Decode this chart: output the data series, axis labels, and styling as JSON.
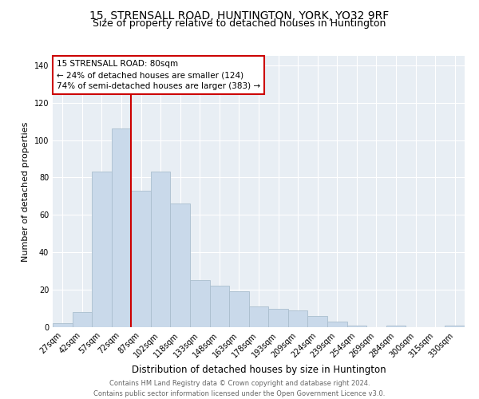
{
  "title": "15, STRENSALL ROAD, HUNTINGTON, YORK, YO32 9RF",
  "subtitle": "Size of property relative to detached houses in Huntington",
  "xlabel": "Distribution of detached houses by size in Huntington",
  "ylabel": "Number of detached properties",
  "bar_labels": [
    "27sqm",
    "42sqm",
    "57sqm",
    "72sqm",
    "87sqm",
    "102sqm",
    "118sqm",
    "133sqm",
    "148sqm",
    "163sqm",
    "178sqm",
    "193sqm",
    "209sqm",
    "224sqm",
    "239sqm",
    "254sqm",
    "269sqm",
    "284sqm",
    "300sqm",
    "315sqm",
    "330sqm"
  ],
  "bar_values": [
    2,
    8,
    83,
    106,
    73,
    83,
    66,
    25,
    22,
    19,
    11,
    10,
    9,
    6,
    3,
    1,
    0,
    1,
    0,
    0,
    1
  ],
  "bar_color": "#c9d9ea",
  "bar_edge_color": "#aabece",
  "vline_x": 3.5,
  "vline_color": "#cc0000",
  "annotation_text": "15 STRENSALL ROAD: 80sqm\n← 24% of detached houses are smaller (124)\n74% of semi-detached houses are larger (383) →",
  "annotation_box_color": "#ffffff",
  "annotation_box_edge_color": "#cc0000",
  "ylim": [
    0,
    145
  ],
  "yticks": [
    0,
    20,
    40,
    60,
    80,
    100,
    120,
    140
  ],
  "bg_color": "#e8eef4",
  "grid_color": "#ffffff",
  "footer_line1": "Contains HM Land Registry data © Crown copyright and database right 2024.",
  "footer_line2": "Contains public sector information licensed under the Open Government Licence v3.0.",
  "title_fontsize": 10,
  "subtitle_fontsize": 9,
  "tick_fontsize": 7,
  "ylabel_fontsize": 8,
  "xlabel_fontsize": 8.5,
  "annotation_fontsize": 7.5,
  "footer_fontsize": 6
}
